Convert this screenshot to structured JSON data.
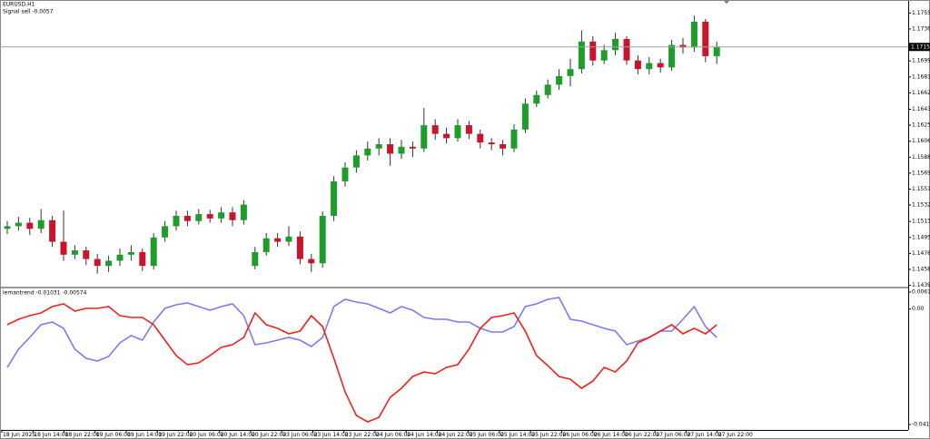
{
  "chart_data": [
    {
      "type": "candlestick",
      "title": "EURUSD,H1",
      "annotation": "Signal sell -0.0057",
      "up_color": "#1f9d2a",
      "down_color": "#c8142c",
      "wick_color": "#333333",
      "open": [
        1.1505,
        1.1508,
        1.1512,
        1.1505,
        1.1515,
        1.149,
        1.1475,
        1.148,
        1.147,
        1.1462,
        1.1468,
        1.1475,
        1.1478,
        1.1462,
        1.1495,
        1.1508,
        1.152,
        1.1514,
        1.1522,
        1.1517,
        1.1524,
        1.1515,
        1.1462,
        1.1478,
        1.1494,
        1.149,
        1.1496,
        1.147,
        1.1465,
        1.152,
        1.156,
        1.1576,
        1.159,
        1.1598,
        1.1603,
        1.1592,
        1.16,
        1.1598,
        1.1625,
        1.1615,
        1.161,
        1.1625,
        1.1615,
        1.1605,
        1.1603,
        1.1598,
        1.162,
        1.165,
        1.166,
        1.1672,
        1.1682,
        1.169,
        1.1722,
        1.17,
        1.1712,
        1.1725,
        1.17,
        1.169,
        1.1697,
        1.1692,
        1.1718,
        1.1715,
        1.1745,
        1.1705
      ],
      "high": [
        1.1514,
        1.1519,
        1.1518,
        1.1528,
        1.152,
        1.1526,
        1.1486,
        1.1484,
        1.1476,
        1.1474,
        1.1482,
        1.1486,
        1.1482,
        1.15,
        1.1514,
        1.1526,
        1.1526,
        1.1528,
        1.1527,
        1.153,
        1.153,
        1.1538,
        1.1484,
        1.15,
        1.15,
        1.1508,
        1.1502,
        1.1476,
        1.1525,
        1.1566,
        1.1582,
        1.1596,
        1.1606,
        1.161,
        1.161,
        1.1608,
        1.1606,
        1.1645,
        1.1632,
        1.1622,
        1.1632,
        1.163,
        1.162,
        1.161,
        1.1608,
        1.1626,
        1.1656,
        1.1665,
        1.1678,
        1.169,
        1.1702,
        1.1735,
        1.1728,
        1.1718,
        1.1732,
        1.1728,
        1.1706,
        1.1704,
        1.1702,
        1.1724,
        1.1726,
        1.1752,
        1.1748,
        1.1722
      ],
      "low": [
        1.1499,
        1.1503,
        1.1498,
        1.15,
        1.1484,
        1.1468,
        1.147,
        1.1463,
        1.1453,
        1.1455,
        1.1462,
        1.1468,
        1.1456,
        1.1458,
        1.149,
        1.1503,
        1.1508,
        1.151,
        1.1512,
        1.1512,
        1.1508,
        1.151,
        1.1458,
        1.1474,
        1.1484,
        1.1485,
        1.1464,
        1.1455,
        1.146,
        1.1514,
        1.1554,
        1.157,
        1.1584,
        1.159,
        1.1578,
        1.1586,
        1.1588,
        1.1594,
        1.1608,
        1.1604,
        1.1606,
        1.1609,
        1.1598,
        1.1596,
        1.159,
        1.1594,
        1.1616,
        1.1646,
        1.1656,
        1.1666,
        1.167,
        1.1685,
        1.1694,
        1.1696,
        1.1706,
        1.1695,
        1.1684,
        1.1684,
        1.1686,
        1.1688,
        1.1708,
        1.171,
        1.1698,
        1.1696
      ],
      "close": [
        1.1508,
        1.1512,
        1.1505,
        1.1515,
        1.149,
        1.1475,
        1.148,
        1.147,
        1.1462,
        1.1468,
        1.1475,
        1.1478,
        1.1462,
        1.1495,
        1.1508,
        1.152,
        1.1514,
        1.1522,
        1.1517,
        1.1524,
        1.1515,
        1.1533,
        1.1478,
        1.1494,
        1.149,
        1.1496,
        1.147,
        1.1465,
        1.152,
        1.156,
        1.1576,
        1.159,
        1.1598,
        1.1603,
        1.1592,
        1.16,
        1.1598,
        1.1625,
        1.1615,
        1.161,
        1.1625,
        1.1615,
        1.1605,
        1.1603,
        1.1598,
        1.162,
        1.165,
        1.166,
        1.1672,
        1.1682,
        1.169,
        1.1722,
        1.17,
        1.1712,
        1.1725,
        1.17,
        1.169,
        1.1697,
        1.1692,
        1.1718,
        1.1715,
        1.1745,
        1.1705,
        1.17157
      ],
      "current_price": {
        "value": 1.17157,
        "label": "1.17157"
      },
      "ylim": [
        1.1438,
        1.1768
      ],
      "yticks": [
        {
          "value": 1.1755,
          "label": "1.17550"
        },
        {
          "value": 1.17365,
          "label": "1.17365"
        },
        {
          "value": 1.16995,
          "label": "1.16995"
        },
        {
          "value": 1.1681,
          "label": "1.16810"
        },
        {
          "value": 1.16625,
          "label": "1.16625"
        },
        {
          "value": 1.16435,
          "label": "1.16435"
        },
        {
          "value": 1.1625,
          "label": "1.16250"
        },
        {
          "value": 1.16065,
          "label": "1.16065"
        },
        {
          "value": 1.1588,
          "label": "1.15880"
        },
        {
          "value": 1.15695,
          "label": "1.15695"
        },
        {
          "value": 1.1551,
          "label": "1.15510"
        },
        {
          "value": 1.15325,
          "label": "1.15325"
        },
        {
          "value": 1.15135,
          "label": "1.15135"
        },
        {
          "value": 1.1495,
          "label": "1.14950"
        },
        {
          "value": 1.14765,
          "label": "1.14765"
        },
        {
          "value": 1.1458,
          "label": "1.14580"
        },
        {
          "value": 1.14395,
          "label": "1.14395"
        }
      ]
    },
    {
      "type": "line",
      "title": "lemantrend -0.01031 -0.00574",
      "series": [
        {
          "color": "#7b7bf0",
          "values": [
            -0.02122,
            -0.01462,
            -0.01033,
            -0.00571,
            -0.00472,
            -0.00703,
            -0.01462,
            -0.01792,
            -0.01891,
            -0.01726,
            -0.01231,
            -0.00967,
            -0.01132,
            -0.00472,
            0.00023,
            0.00155,
            0.00221,
            0.00089,
            -0.00043,
            0.00089,
            0.00188,
            -0.00241,
            -0.01297,
            -0.01231,
            -0.01132,
            -0.01033,
            -0.01132,
            -0.01363,
            -0.01033,
            0.00089,
            0.00353,
            0.00254,
            0.00188,
            0.00023,
            -0.00142,
            0.00089,
            -0.00043,
            -0.00307,
            -0.00373,
            -0.00373,
            -0.00472,
            -0.00472,
            -0.00703,
            -0.00835,
            -0.00835,
            -0.00637,
            0.00089,
            0.00188,
            0.00353,
            0.00419,
            -0.00373,
            -0.00439,
            -0.00571,
            -0.00703,
            -0.00802,
            -0.01297,
            -0.01165,
            -0.01033,
            -0.00802,
            -0.00802,
            -0.00373,
            0.00089,
            -0.00637,
            -0.01031
          ]
        },
        {
          "color": "#f02020",
          "values": [
            -0.00571,
            -0.00373,
            -0.00241,
            -0.00142,
            0.00089,
            0.00188,
            -0.00076,
            0.00023,
            0.00023,
            0.00089,
            -0.00241,
            -0.00307,
            -0.00307,
            -0.00571,
            -0.01132,
            -0.01693,
            -0.02023,
            -0.01957,
            -0.01693,
            -0.01396,
            -0.01297,
            -0.01033,
            -0.00142,
            -0.00571,
            -0.00703,
            -0.00901,
            -0.00802,
            -0.00241,
            -0.00637,
            -0.01792,
            -0.03013,
            -0.03871,
            -0.04102,
            -0.03937,
            -0.03211,
            -0.02881,
            -0.02452,
            -0.02287,
            -0.02353,
            -0.02122,
            -0.02023,
            -0.01462,
            -0.00703,
            -0.00307,
            -0.00241,
            -0.00142,
            -0.00802,
            -0.01693,
            -0.02056,
            -0.02452,
            -0.02551,
            -0.02881,
            -0.02617,
            -0.02122,
            -0.02287,
            -0.01891,
            -0.01231,
            -0.01033,
            -0.00802,
            -0.00571,
            -0.00901,
            -0.00703,
            -0.00901,
            -0.00574
          ]
        }
      ],
      "ylim": [
        -0.04198,
        0.00617
      ],
      "yticks": [
        0.00617,
        {
          "value": 0,
          "label": "0.00"
        },
        -0.04198
      ],
      "time_labels": [
        "18 Jun 2025",
        "18 Jun 14:00",
        "18 Jun 22:00",
        "19 Jun 06:00",
        "19 Jun 14:00",
        "19 Jun 22:00",
        "20 Jun 06:00",
        "20 Jun 14:00",
        "20 Jun 22:00",
        "23 Jun 06:00",
        "23 Jun 14:00",
        "23 Jun 22:00",
        "24 Jun 06:00",
        "24 Jun 14:00",
        "24 Jun 22:00",
        "25 Jun 06:00",
        "25 Jun 14:00",
        "25 Jun 22:00",
        "26 Jun 06:00",
        "26 Jun 14:00",
        "26 Jun 22:00",
        "27 Jun 06:00",
        "27 Jun 14:00",
        "27 Jun 22:00"
      ]
    }
  ]
}
